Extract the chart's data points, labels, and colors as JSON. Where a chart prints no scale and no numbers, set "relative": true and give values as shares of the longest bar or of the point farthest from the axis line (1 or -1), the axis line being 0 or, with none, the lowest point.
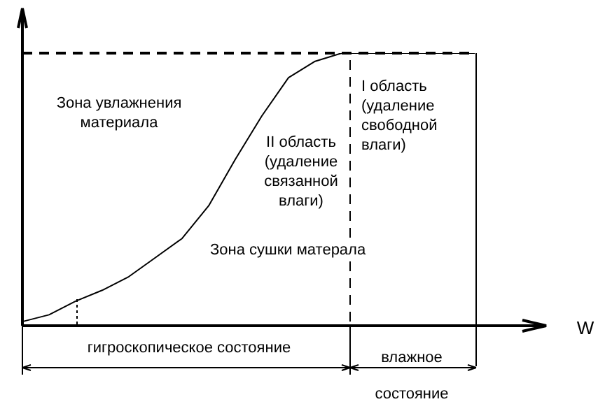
{
  "chart_data": {
    "type": "line",
    "relative": true,
    "categories": [
      null,
      null,
      null,
      null,
      null,
      null,
      null,
      null,
      null,
      null,
      null,
      null,
      null,
      null,
      null,
      null,
      null,
      null
    ],
    "series": [
      {
        "color": "#000000",
        "values": [
          0.015,
          0.04,
          0.09,
          0.13,
          0.18,
          0.25,
          0.32,
          0.44,
          0.61,
          0.77,
          0.91,
          0.97,
          1,
          1,
          1,
          1,
          1,
          1
        ]
      }
    ],
    "ref_lines": [
      {
        "axis": "y",
        "value": 1,
        "color": "#000000",
        "line_style": "dashed"
      }
    ],
    "annotations": [
      "Зона увлажнения материала",
      "II область (удаление связанной влаги)",
      "I область (удаление свободной влаги)",
      "Зона сушки матерала",
      "гигроскопическое состояние",
      "влажное состояние",
      "W"
    ],
    "legend": false,
    "marker": "none",
    "line_style": "solid"
  }
}
